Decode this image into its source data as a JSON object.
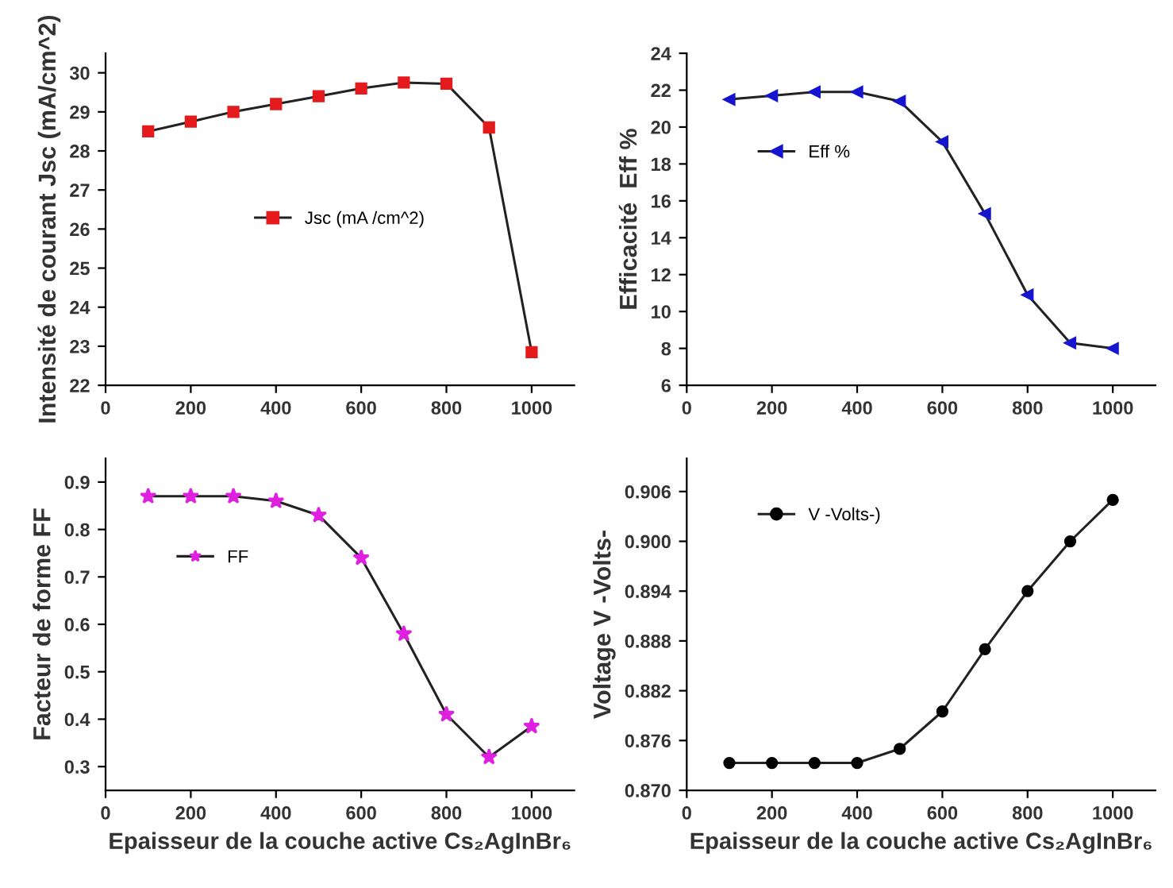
{
  "chart_data": [
    {
      "type": "line",
      "ylabel": "Intensité de courant Jsc (mA/cm^2)",
      "x": [
        100,
        200,
        300,
        400,
        500,
        600,
        700,
        800,
        900,
        1000
      ],
      "series": [
        {
          "name": "Jsc (mA /cm^2)",
          "color": "#e41a1c",
          "values": [
            28.5,
            28.75,
            29.0,
            29.2,
            29.4,
            29.6,
            29.75,
            29.72,
            28.6,
            22.85
          ]
        }
      ],
      "marker": "square",
      "xlim": [
        0,
        1100
      ],
      "xticks": [
        0,
        200,
        400,
        600,
        800,
        1000
      ],
      "ylim": [
        22,
        30.5
      ],
      "yticks": [
        22,
        23,
        24,
        25,
        26,
        27,
        28,
        29,
        30
      ],
      "legend": "center",
      "grid": false
    },
    {
      "type": "line",
      "ylabel": "Efficacité  Eff %",
      "x": [
        100,
        200,
        300,
        400,
        500,
        600,
        700,
        800,
        900,
        1000
      ],
      "series": [
        {
          "name": "Eff %",
          "color": "#1515d0",
          "values": [
            21.5,
            21.7,
            21.9,
            21.9,
            21.4,
            19.2,
            15.3,
            10.9,
            8.3,
            8.0
          ]
        }
      ],
      "marker": "triangle",
      "xlim": [
        0,
        1100
      ],
      "xticks": [
        0,
        200,
        400,
        600,
        800,
        1000
      ],
      "ylim": [
        6,
        24
      ],
      "yticks": [
        6,
        8,
        10,
        12,
        14,
        16,
        18,
        20,
        22,
        24
      ],
      "legend": "center left",
      "grid": false
    },
    {
      "type": "line",
      "ylabel": "Facteur de forme FF",
      "xlabel": "Epaisseur de la couche active Cs₂AgInBr₆",
      "x": [
        100,
        200,
        300,
        400,
        500,
        600,
        700,
        800,
        900,
        1000
      ],
      "series": [
        {
          "name": "FF",
          "color": "#e020e0",
          "values": [
            0.87,
            0.87,
            0.87,
            0.86,
            0.83,
            0.74,
            0.58,
            0.41,
            0.32,
            0.385
          ]
        }
      ],
      "marker": "star",
      "xlim": [
        0,
        1100
      ],
      "xticks": [
        0,
        200,
        400,
        600,
        800,
        1000
      ],
      "ylim": [
        0.25,
        0.95
      ],
      "yticks": [
        0.3,
        0.4,
        0.5,
        0.6,
        0.7,
        0.8,
        0.9
      ],
      "legend": "center left",
      "grid": false
    },
    {
      "type": "line",
      "ylabel": "Voltage V -Volts-",
      "xlabel": "Epaisseur de la couche active Cs₂AgInBr₆",
      "x": [
        100,
        200,
        300,
        400,
        500,
        600,
        700,
        800,
        900,
        1000
      ],
      "series": [
        {
          "name": "V -Volts-)",
          "color": "#000000",
          "values": [
            0.8733,
            0.8733,
            0.8733,
            0.8733,
            0.875,
            0.8795,
            0.887,
            0.894,
            0.9,
            0.905
          ]
        }
      ],
      "marker": "circle",
      "xlim": [
        0,
        1100
      ],
      "xticks": [
        0,
        200,
        400,
        600,
        800,
        1000
      ],
      "ylim": [
        0.87,
        0.91
      ],
      "yticks": [
        {
          "value": 0.87,
          "label": "0.870"
        },
        {
          "value": 0.876,
          "label": "0.876"
        },
        {
          "value": 0.882,
          "label": "0.882"
        },
        {
          "value": 0.888,
          "label": "0.888"
        },
        {
          "value": 0.894,
          "label": "0.894"
        },
        {
          "value": 0.9,
          "label": "0.900"
        },
        {
          "value": 0.906,
          "label": "0.906"
        }
      ],
      "legend": "upper left",
      "grid": false
    }
  ]
}
